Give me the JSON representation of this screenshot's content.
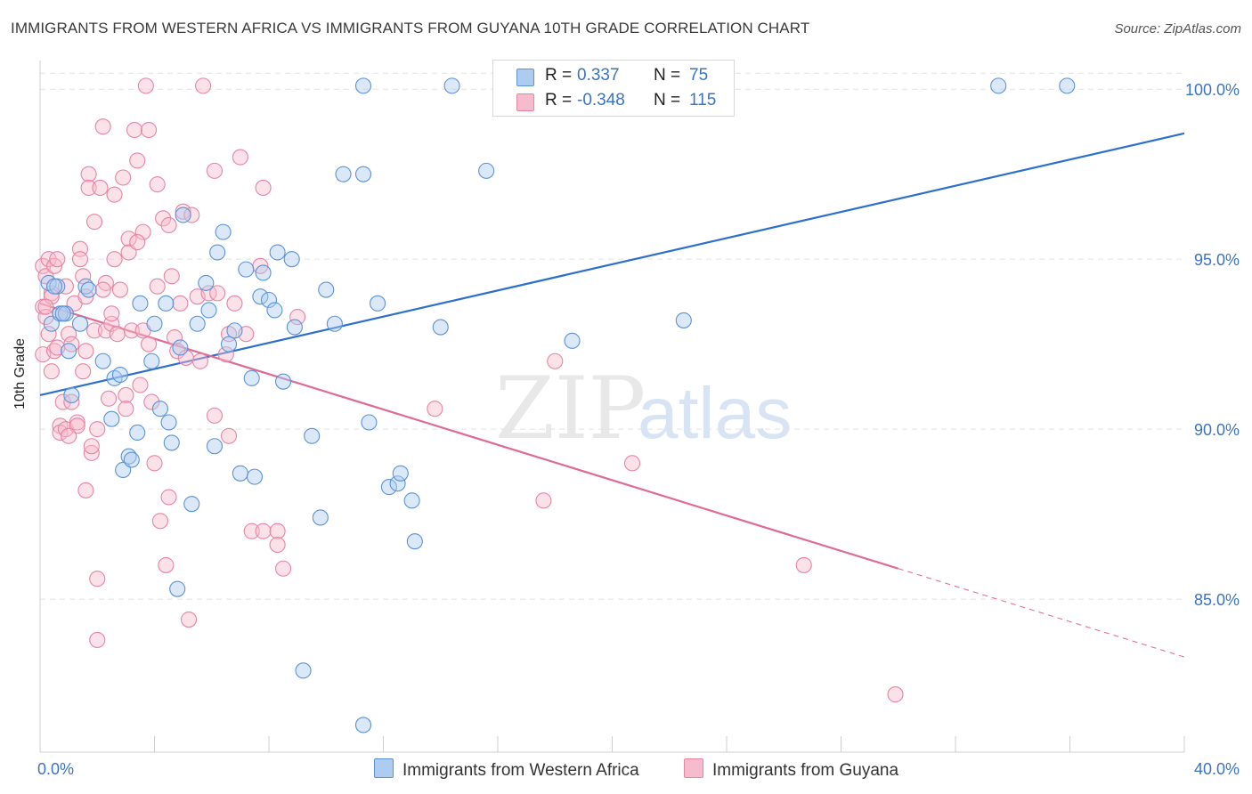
{
  "title": "IMMIGRANTS FROM WESTERN AFRICA VS IMMIGRANTS FROM GUYANA 10TH GRADE CORRELATION CHART",
  "source": "Source: ZipAtlas.com",
  "watermark": {
    "zip": "ZIP",
    "atlas": "atlas"
  },
  "legend": {
    "blue": {
      "r_label": "R =",
      "r_value": "0.337",
      "n_label": "N =",
      "n_value": "75"
    },
    "pink": {
      "r_label": "R =",
      "r_value": "-0.348",
      "n_label": "N =",
      "n_value": "115"
    }
  },
  "colors": {
    "blue_fill": "#aecbf0",
    "blue_stroke": "#5b93d8",
    "blue_line": "#2d6fcc",
    "pink_fill": "#f6bccd",
    "pink_stroke": "#e884a5",
    "pink_line": "#e06a94",
    "tick_text": "#3b73c4",
    "grid": "#e2e2e2"
  },
  "chart_data": {
    "type": "scatter",
    "ylabel": "10th Grade",
    "xlim": [
      0,
      40
    ],
    "ylim": [
      80.5,
      101
    ],
    "x_tick_labels": [
      "0.0%",
      "40.0%"
    ],
    "y_ticks": [
      85,
      90,
      95,
      100
    ],
    "y_tick_labels": [
      "85.0%",
      "90.0%",
      "95.0%",
      "100.0%"
    ],
    "grid": true,
    "series": [
      {
        "name": "Immigrants from Western Africa",
        "color": "#5b93d8",
        "trend": {
          "x": [
            0,
            40
          ],
          "y": [
            91.0,
            98.7
          ]
        },
        "points": [
          [
            0.3,
            94.3
          ],
          [
            0.4,
            93.1
          ],
          [
            0.6,
            94.2
          ],
          [
            0.7,
            93.4
          ],
          [
            0.9,
            93.4
          ],
          [
            1.0,
            92.3
          ],
          [
            1.1,
            91.0
          ],
          [
            1.4,
            93.1
          ],
          [
            1.6,
            94.2
          ],
          [
            1.7,
            94.1
          ],
          [
            2.2,
            92.0
          ],
          [
            2.6,
            91.5
          ],
          [
            2.8,
            91.6
          ],
          [
            2.5,
            90.3
          ],
          [
            3.1,
            89.2
          ],
          [
            2.9,
            88.8
          ],
          [
            3.2,
            89.1
          ],
          [
            3.4,
            89.9
          ],
          [
            3.5,
            93.7
          ],
          [
            3.9,
            92.0
          ],
          [
            4.0,
            93.1
          ],
          [
            4.2,
            90.6
          ],
          [
            4.5,
            90.2
          ],
          [
            4.4,
            93.7
          ],
          [
            4.6,
            89.6
          ],
          [
            4.9,
            92.4
          ],
          [
            5.0,
            96.3
          ],
          [
            5.3,
            87.8
          ],
          [
            5.5,
            93.1
          ],
          [
            5.8,
            94.3
          ],
          [
            5.9,
            93.5
          ],
          [
            6.1,
            89.5
          ],
          [
            6.2,
            95.2
          ],
          [
            6.4,
            95.8
          ],
          [
            6.6,
            92.5
          ],
          [
            6.8,
            92.9
          ],
          [
            7.0,
            88.7
          ],
          [
            7.2,
            94.7
          ],
          [
            7.4,
            91.5
          ],
          [
            7.5,
            88.6
          ],
          [
            7.7,
            93.9
          ],
          [
            7.8,
            94.6
          ],
          [
            8.0,
            93.8
          ],
          [
            8.2,
            93.5
          ],
          [
            8.3,
            95.2
          ],
          [
            8.5,
            91.4
          ],
          [
            8.8,
            95.0
          ],
          [
            8.9,
            93.0
          ],
          [
            9.5,
            89.8
          ],
          [
            9.8,
            87.4
          ],
          [
            10.3,
            93.1
          ],
          [
            10.0,
            94.1
          ],
          [
            10.6,
            97.5
          ],
          [
            11.3,
            97.5
          ],
          [
            11.5,
            90.2
          ],
          [
            11.8,
            93.7
          ],
          [
            12.2,
            88.3
          ],
          [
            12.5,
            88.4
          ],
          [
            12.6,
            88.7
          ],
          [
            13.0,
            87.9
          ],
          [
            13.1,
            86.7
          ],
          [
            14.0,
            93.0
          ],
          [
            15.6,
            97.6
          ],
          [
            18.6,
            92.6
          ],
          [
            22.5,
            93.2
          ],
          [
            11.3,
            81.3
          ],
          [
            9.2,
            82.9
          ],
          [
            4.8,
            85.3
          ],
          [
            11.3,
            100.1
          ],
          [
            14.4,
            100.1
          ],
          [
            16.8,
            100.1
          ],
          [
            33.5,
            100.1
          ],
          [
            35.9,
            100.1
          ],
          [
            0.8,
            93.4
          ],
          [
            0.5,
            94.2
          ]
        ]
      },
      {
        "name": "Immigrants from Guyana",
        "color": "#e884a5",
        "trend": {
          "x": [
            0,
            30
          ],
          "y": [
            93.7,
            85.9
          ]
        },
        "trend_dashed": {
          "x": [
            30,
            40
          ],
          "y": [
            85.9,
            83.3
          ]
        },
        "points": [
          [
            0.1,
            94.8
          ],
          [
            0.1,
            93.6
          ],
          [
            0.1,
            92.2
          ],
          [
            0.2,
            94.5
          ],
          [
            0.2,
            93.3
          ],
          [
            0.3,
            95.0
          ],
          [
            0.3,
            92.8
          ],
          [
            0.4,
            94.0
          ],
          [
            0.4,
            93.9
          ],
          [
            0.5,
            92.3
          ],
          [
            0.5,
            94.8
          ],
          [
            0.6,
            92.4
          ],
          [
            0.6,
            95.0
          ],
          [
            0.7,
            90.1
          ],
          [
            0.7,
            89.9
          ],
          [
            0.8,
            90.8
          ],
          [
            0.8,
            93.4
          ],
          [
            0.9,
            94.2
          ],
          [
            0.9,
            90.0
          ],
          [
            1.0,
            92.8
          ],
          [
            1.1,
            90.8
          ],
          [
            1.1,
            92.5
          ],
          [
            1.2,
            93.7
          ],
          [
            1.3,
            90.2
          ],
          [
            1.3,
            90.1
          ],
          [
            1.4,
            95.3
          ],
          [
            1.4,
            95.0
          ],
          [
            1.5,
            94.5
          ],
          [
            1.5,
            91.7
          ],
          [
            1.6,
            93.9
          ],
          [
            1.6,
            92.3
          ],
          [
            1.7,
            97.5
          ],
          [
            1.7,
            97.1
          ],
          [
            1.8,
            89.3
          ],
          [
            1.8,
            89.5
          ],
          [
            1.9,
            96.1
          ],
          [
            1.9,
            92.9
          ],
          [
            2.0,
            90.0
          ],
          [
            2.1,
            97.1
          ],
          [
            2.2,
            98.9
          ],
          [
            2.3,
            94.3
          ],
          [
            2.3,
            92.9
          ],
          [
            2.4,
            90.9
          ],
          [
            2.5,
            93.1
          ],
          [
            2.5,
            93.4
          ],
          [
            2.6,
            95.0
          ],
          [
            2.6,
            96.9
          ],
          [
            2.7,
            92.8
          ],
          [
            2.8,
            94.1
          ],
          [
            2.9,
            97.4
          ],
          [
            3.0,
            91.0
          ],
          [
            3.0,
            90.6
          ],
          [
            3.1,
            95.6
          ],
          [
            3.1,
            95.2
          ],
          [
            3.2,
            92.9
          ],
          [
            3.3,
            98.8
          ],
          [
            3.4,
            97.9
          ],
          [
            3.5,
            91.3
          ],
          [
            3.6,
            92.9
          ],
          [
            3.6,
            95.8
          ],
          [
            3.7,
            100.1
          ],
          [
            3.8,
            92.5
          ],
          [
            3.8,
            98.8
          ],
          [
            3.9,
            90.8
          ],
          [
            4.0,
            89.0
          ],
          [
            4.1,
            94.2
          ],
          [
            4.1,
            97.2
          ],
          [
            4.2,
            87.3
          ],
          [
            4.3,
            96.2
          ],
          [
            4.4,
            86.0
          ],
          [
            4.5,
            96.0
          ],
          [
            4.6,
            94.5
          ],
          [
            4.7,
            92.7
          ],
          [
            4.8,
            92.3
          ],
          [
            4.9,
            93.7
          ],
          [
            5.0,
            96.4
          ],
          [
            5.2,
            84.4
          ],
          [
            5.3,
            96.3
          ],
          [
            5.5,
            93.9
          ],
          [
            5.6,
            92.0
          ],
          [
            5.7,
            100.1
          ],
          [
            5.9,
            94.0
          ],
          [
            6.1,
            90.4
          ],
          [
            6.1,
            97.6
          ],
          [
            6.2,
            94.0
          ],
          [
            6.5,
            92.2
          ],
          [
            6.6,
            89.8
          ],
          [
            6.8,
            93.7
          ],
          [
            7.0,
            98.0
          ],
          [
            7.2,
            92.8
          ],
          [
            7.4,
            87.0
          ],
          [
            7.7,
            94.8
          ],
          [
            7.8,
            87.0
          ],
          [
            8.3,
            87.0
          ],
          [
            8.3,
            86.6
          ],
          [
            8.5,
            85.9
          ],
          [
            9.0,
            93.3
          ],
          [
            13.8,
            90.6
          ],
          [
            17.6,
            87.9
          ],
          [
            18.0,
            92.0
          ],
          [
            20.7,
            89.0
          ],
          [
            26.7,
            86.0
          ],
          [
            29.9,
            82.2
          ],
          [
            2.0,
            85.6
          ],
          [
            1.6,
            88.2
          ],
          [
            2.0,
            83.8
          ],
          [
            6.6,
            92.8
          ],
          [
            4.5,
            88.0
          ],
          [
            7.8,
            97.1
          ],
          [
            0.2,
            93.6
          ],
          [
            0.4,
            91.7
          ],
          [
            1.0,
            89.8
          ],
          [
            2.2,
            94.1
          ],
          [
            3.4,
            95.5
          ],
          [
            5.1,
            92.1
          ]
        ]
      }
    ]
  },
  "bottom_legend": {
    "blue_label": "Immigrants from Western Africa",
    "pink_label": "Immigrants from Guyana"
  }
}
